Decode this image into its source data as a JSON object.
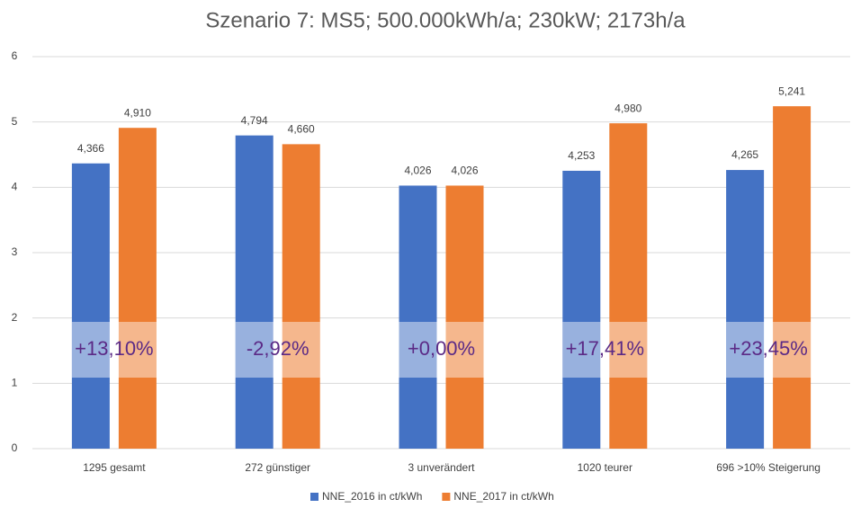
{
  "chart_data": {
    "type": "bar",
    "title": "Szenario 7: MS5; 500.000kWh/a; 230kW; 2173h/a",
    "categories": [
      "1295 gesamt",
      "272 günstiger",
      "3 unverändert",
      "1020 teurer",
      "696 >10% Steigerung"
    ],
    "series": [
      {
        "name": "NNE_2016 in ct/kWh",
        "color": "#4472c4",
        "values": [
          4.366,
          4.794,
          4.026,
          4.253,
          4.265
        ],
        "value_labels": [
          "4,366",
          "4,794",
          "4,026",
          "4,253",
          "4,265"
        ]
      },
      {
        "name": "NNE_2017 in ct/kWh",
        "color": "#ed7d31",
        "values": [
          4.91,
          4.66,
          4.026,
          4.98,
          5.241
        ],
        "value_labels": [
          "4,910",
          "4,660",
          "4,026",
          "4,980",
          "5,241"
        ]
      }
    ],
    "annotations": [
      "+13,10%",
      "-2,92%",
      "+0,00%",
      "+17,41%",
      "+23,45%"
    ],
    "ylim": [
      0,
      6
    ],
    "yticks": [
      0,
      1,
      2,
      3,
      4,
      5,
      6
    ],
    "grid": true,
    "legend": "bottom"
  }
}
